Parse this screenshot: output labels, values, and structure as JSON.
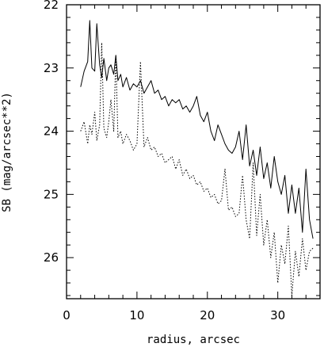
{
  "chart_data": {
    "type": "line",
    "title": "",
    "xlabel": "radius, arcsec",
    "ylabel": "SB (mag/arcsec**2)",
    "xlim": [
      0,
      36
    ],
    "ylim": [
      26.65,
      22.0
    ],
    "y_inverted": true,
    "x_ticks": [
      0,
      10,
      20,
      30
    ],
    "y_ticks": [
      22,
      23,
      24,
      25,
      26
    ],
    "grid": false,
    "legend": "none",
    "series": [
      {
        "style": "solid",
        "x": [
          2.0,
          2.5,
          3.0,
          3.3,
          3.6,
          4.0,
          4.3,
          4.7,
          5.0,
          5.3,
          5.7,
          6.0,
          6.3,
          6.7,
          7.0,
          7.3,
          7.7,
          8.0,
          8.5,
          9.0,
          9.5,
          10.0,
          10.5,
          11.0,
          11.5,
          12.0,
          12.5,
          13.0,
          13.5,
          14.0,
          14.5,
          15.0,
          15.5,
          16.0,
          16.5,
          17.0,
          17.5,
          18.0,
          18.5,
          19.0,
          19.5,
          20.0,
          20.5,
          21.0,
          21.5,
          22.0,
          22.5,
          23.0,
          23.5,
          24.0,
          24.5,
          25.0,
          25.5,
          26.0,
          26.5,
          27.0,
          27.5,
          28.0,
          28.5,
          29.0,
          29.5,
          30.0,
          30.5,
          31.0,
          31.5,
          32.0,
          32.5,
          33.0,
          33.5,
          34.0,
          34.5,
          35.0
        ],
        "y": [
          23.3,
          23.05,
          22.9,
          22.25,
          23.0,
          23.05,
          22.3,
          22.95,
          23.15,
          22.85,
          23.2,
          23.0,
          22.95,
          23.1,
          22.8,
          23.2,
          23.1,
          23.3,
          23.15,
          23.35,
          23.25,
          23.3,
          23.2,
          23.4,
          23.3,
          23.2,
          23.4,
          23.35,
          23.5,
          23.45,
          23.6,
          23.5,
          23.55,
          23.5,
          23.65,
          23.6,
          23.7,
          23.6,
          23.45,
          23.75,
          23.85,
          23.7,
          24.0,
          24.15,
          23.9,
          24.05,
          24.2,
          24.3,
          24.35,
          24.25,
          24.0,
          24.45,
          23.9,
          24.55,
          24.3,
          24.7,
          24.25,
          24.75,
          24.5,
          24.9,
          24.4,
          24.8,
          25.0,
          24.7,
          25.3,
          24.85,
          25.3,
          24.9,
          25.6,
          24.6,
          25.4,
          25.7
        ]
      },
      {
        "style": "dotted",
        "x": [
          2.0,
          2.5,
          3.0,
          3.3,
          3.6,
          4.0,
          4.3,
          4.7,
          5.0,
          5.3,
          5.7,
          6.0,
          6.3,
          6.7,
          7.0,
          7.3,
          7.7,
          8.0,
          8.5,
          9.0,
          9.5,
          10.0,
          10.5,
          11.0,
          11.5,
          12.0,
          12.5,
          13.0,
          13.5,
          14.0,
          14.5,
          15.0,
          15.5,
          16.0,
          16.5,
          17.0,
          17.5,
          18.0,
          18.5,
          19.0,
          19.5,
          20.0,
          20.5,
          21.0,
          21.5,
          22.0,
          22.5,
          23.0,
          23.5,
          24.0,
          24.5,
          25.0,
          25.5,
          26.0,
          26.5,
          27.0,
          27.5,
          28.0,
          28.5,
          29.0,
          29.5,
          30.0,
          30.5,
          31.0,
          31.5,
          32.0,
          32.5,
          33.0,
          33.5,
          34.0,
          34.5,
          35.0
        ],
        "y": [
          24.0,
          23.85,
          24.2,
          23.9,
          24.05,
          23.7,
          24.15,
          23.9,
          22.6,
          23.95,
          24.1,
          23.85,
          23.5,
          24.0,
          22.8,
          24.1,
          24.0,
          24.2,
          24.05,
          24.15,
          24.3,
          24.2,
          22.9,
          24.25,
          24.1,
          24.3,
          24.25,
          24.4,
          24.35,
          24.5,
          24.45,
          24.4,
          24.6,
          24.45,
          24.7,
          24.6,
          24.75,
          24.7,
          24.85,
          24.8,
          24.95,
          24.9,
          25.05,
          25.0,
          25.15,
          25.1,
          24.6,
          25.25,
          25.2,
          25.35,
          25.3,
          24.7,
          25.4,
          25.7,
          24.5,
          25.65,
          25.0,
          25.8,
          25.4,
          26.0,
          25.6,
          26.4,
          25.8,
          26.1,
          25.5,
          26.6,
          25.9,
          26.3,
          25.7,
          26.2,
          25.9,
          25.85
        ]
      }
    ]
  }
}
